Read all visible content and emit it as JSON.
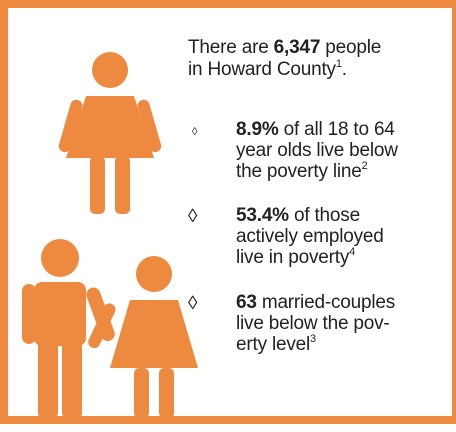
{
  "intro": {
    "prefix": "There are ",
    "number": "6,347",
    "rest": " people",
    "line2": "in Howard County",
    "footnote": "1",
    "end": "."
  },
  "bullets": [
    {
      "marker": "◊",
      "bold": "8.9%",
      "lines": [
        " of all 18 to 64",
        "year olds live below",
        "the poverty line"
      ],
      "footnote": "2"
    },
    {
      "marker": "◊",
      "bold": "53.4%",
      "lines": [
        " of those",
        "actively employed",
        "live in poverty"
      ],
      "footnote": "4"
    },
    {
      "marker": "◊",
      "bold": "63",
      "lines": [
        " married-couples",
        "live below the pov-",
        "erty level"
      ],
      "footnote": "3"
    }
  ]
}
